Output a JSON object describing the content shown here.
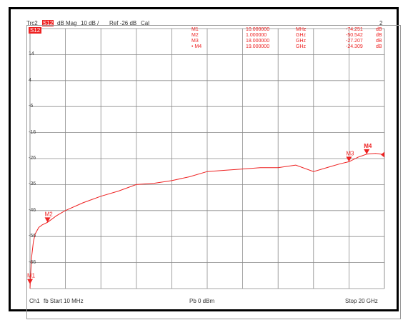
{
  "header": {
    "trace_prefix": "Trc2",
    "trace_param": "S12",
    "trace_format": "dB Mag",
    "scale": "10 dB /",
    "reference": "Ref -26 dB",
    "cal": "Cal",
    "window_number": "2",
    "trace_badge": "S12"
  },
  "markers_table": [
    {
      "name": "M1",
      "freq": "10.000000",
      "unit": "MHz",
      "value": "-74.251",
      "vunit": "dB"
    },
    {
      "name": "M2",
      "freq": "1.000000",
      "unit": "GHz",
      "value": "-50.542",
      "vunit": "dB"
    },
    {
      "name": "M3",
      "freq": "18.000000",
      "unit": "GHz",
      "value": "-27.207",
      "vunit": "dB"
    },
    {
      "name": "• M4",
      "freq": "19.000000",
      "unit": "GHz",
      "value": "-24.309",
      "vunit": "dB"
    }
  ],
  "footer": {
    "channel": "Ch1",
    "start_label": "fb  Start 10 MHz",
    "power": "Pb  0 dBm",
    "stop_label": "Stop 20 GHz"
  },
  "chart_data": {
    "type": "line",
    "x_unit": "GHz",
    "xlim": [
      0.01,
      20
    ],
    "ylim": [
      -76,
      24
    ],
    "y_divisions": 10,
    "x_divisions": 10,
    "y_tick_labels": [
      "14",
      "4",
      "-6",
      "-16",
      "-26",
      "-36",
      "-46",
      "-56",
      "-66"
    ],
    "grid": true,
    "trace_color": "#ee2222",
    "series": [
      {
        "x": [
          0.01,
          0.05,
          0.1,
          0.2,
          0.3,
          0.5,
          0.7,
          1.0,
          1.5,
          2.0,
          3.0,
          4.0,
          5.0,
          6.0,
          7.0,
          8.0,
          9.0,
          10.0,
          11.0,
          12.0,
          13.0,
          14.0,
          15.0,
          16.0,
          17.0,
          17.5,
          18.0,
          18.5,
          19.0,
          19.5,
          20.0
        ],
        "y": [
          -76.0,
          -70.0,
          -64.0,
          -58.0,
          -55.0,
          -52.5,
          -51.5,
          -50.5,
          -48.0,
          -46.0,
          -43.0,
          -40.5,
          -38.5,
          -36.0,
          -35.5,
          -34.5,
          -33.0,
          -31.0,
          -30.5,
          -30.0,
          -29.5,
          -29.5,
          -28.5,
          -31.0,
          -29.0,
          -28.0,
          -27.2,
          -25.5,
          -24.3,
          -24.0,
          -24.5
        ]
      }
    ],
    "markers": [
      {
        "name": "M1",
        "x": 0.01,
        "y": -74.251
      },
      {
        "name": "M2",
        "x": 1.0,
        "y": -50.542
      },
      {
        "name": "M3",
        "x": 18.0,
        "y": -27.207
      },
      {
        "name": "M4",
        "x": 19.0,
        "y": -24.309
      }
    ]
  }
}
